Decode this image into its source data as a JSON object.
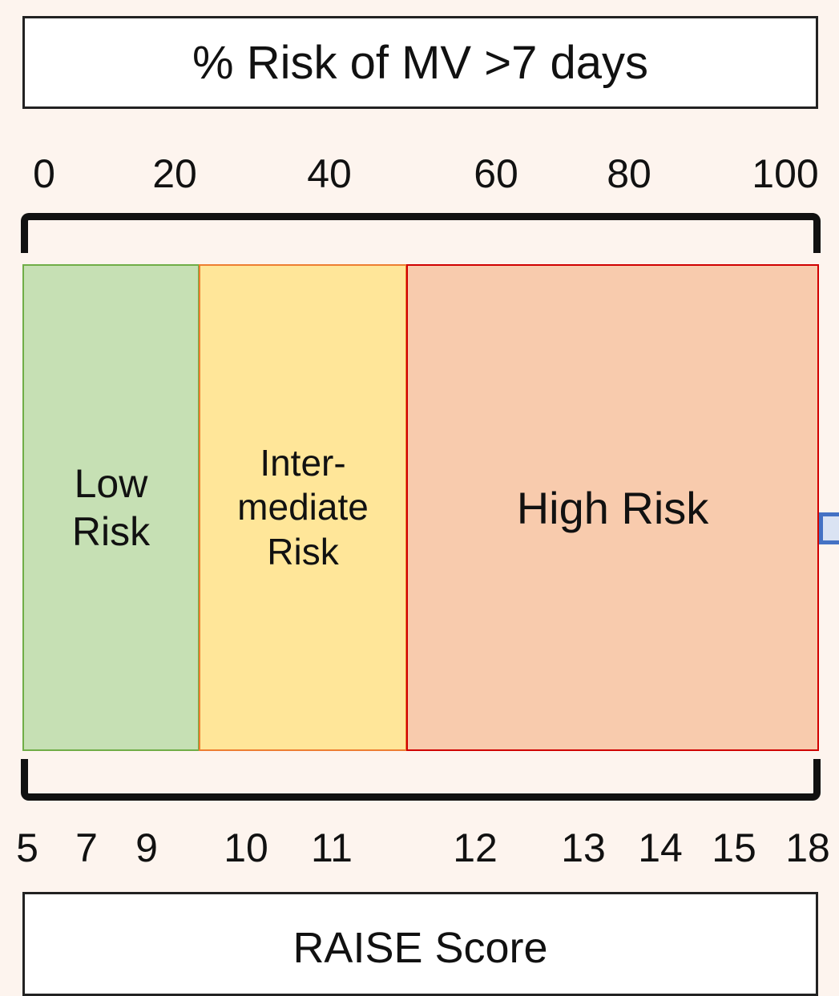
{
  "title": "% Risk of MV >7 days",
  "risk_ticks": [
    "0",
    "20",
    "40",
    "60",
    "80",
    "100"
  ],
  "zones": [
    {
      "label_lines": [
        "Low",
        "Risk"
      ],
      "fill": "#c6e0b4",
      "border": "#70ad47"
    },
    {
      "label_lines": [
        "Inter-",
        "mediate",
        "Risk"
      ],
      "fill": "#ffe699",
      "border": "#ed7d31"
    },
    {
      "label_lines": [
        "High Risk"
      ],
      "fill": "#f8cbad",
      "border": "#d00000"
    }
  ],
  "score_ticks": [
    "5",
    "7",
    "9",
    "10",
    "11",
    "12",
    "13",
    "14",
    "15",
    "18"
  ],
  "score_label": "RAISE Score",
  "colors": {
    "background": "#fdf4ee",
    "connector": "#4472c4"
  }
}
